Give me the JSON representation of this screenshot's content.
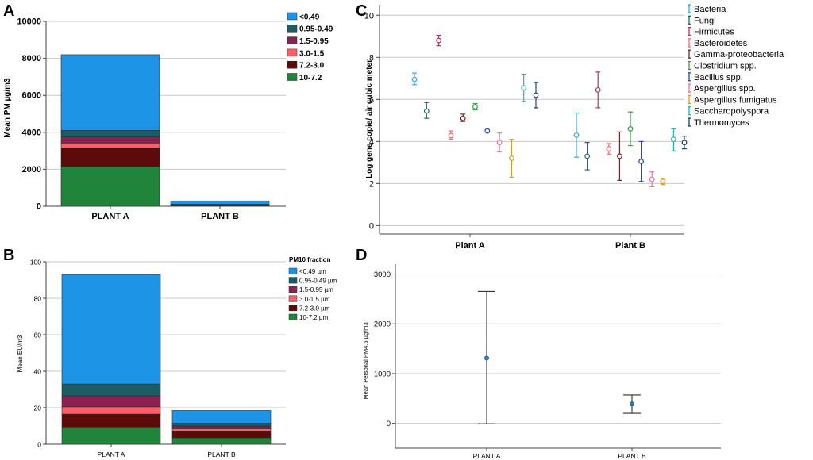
{
  "chart_data": [
    {
      "panel": "A",
      "type": "bar",
      "stacked": true,
      "categories": [
        "PLANT A",
        "PLANT B"
      ],
      "ylabel": "Mean PM µg/m3",
      "ylim": [
        0,
        10000
      ],
      "yticks": [
        0,
        2000,
        4000,
        6000,
        8000,
        10000
      ],
      "grid": true,
      "legend_title": "",
      "series": [
        {
          "name": "10-7.2",
          "color": "#21843b",
          "values": [
            2150,
            20
          ]
        },
        {
          "name": "7.2-3.0",
          "color": "#5c0a0a",
          "values": [
            1000,
            30
          ]
        },
        {
          "name": "3.0-1.5",
          "color": "#fd5e6a",
          "values": [
            270,
            15
          ]
        },
        {
          "name": "1.5-0.95",
          "color": "#8e1f51",
          "values": [
            330,
            15
          ]
        },
        {
          "name": "0.95-0.49",
          "color": "#1b5d64",
          "values": [
            350,
            30
          ]
        },
        {
          "name": "<0.49",
          "color": "#1e94e6",
          "values": [
            4100,
            180
          ]
        }
      ]
    },
    {
      "panel": "B",
      "type": "bar",
      "stacked": true,
      "categories": [
        "PLANT A",
        "PLANT B"
      ],
      "ylabel": "Mean EU/m3",
      "ylim": [
        0,
        100
      ],
      "yticks": [
        0,
        20,
        40,
        60,
        80,
        100
      ],
      "grid": true,
      "legend_title": "PM10 fraction",
      "series": [
        {
          "name": "10-7.2 µm",
          "color": "#21843b",
          "values": [
            9,
            3.5
          ]
        },
        {
          "name": "7.2-3.0 µm",
          "color": "#5c0a0a",
          "values": [
            7.5,
            3.5
          ]
        },
        {
          "name": "3.0-1.5 µm",
          "color": "#fd5e6a",
          "values": [
            4,
            1.5
          ]
        },
        {
          "name": "1.5-0.95 µm",
          "color": "#8e1f51",
          "values": [
            6,
            1.5
          ]
        },
        {
          "name": "0.95-0.49 µm",
          "color": "#1b5d64",
          "values": [
            6.5,
            1.5
          ]
        },
        {
          "name": "<0.49 µm",
          "color": "#1e94e6",
          "values": [
            60,
            7
          ]
        }
      ]
    },
    {
      "panel": "C",
      "type": "scatter",
      "error_bars": true,
      "categories": [
        "Plant A",
        "Plant B"
      ],
      "ylabel": "Log gene copie/ air cubic meter",
      "ylim": [
        -0.4,
        10.5
      ],
      "yticks": [
        0,
        2,
        4,
        6,
        8,
        10
      ],
      "grid": true,
      "series": [
        {
          "name": "Bacteria",
          "color": "#3aa5e8",
          "points": [
            {
              "x": "Plant A",
              "y": 6.95,
              "lo": 6.7,
              "hi": 7.25
            },
            {
              "x": "Plant B",
              "y": 4.3,
              "lo": 3.25,
              "hi": 5.35
            }
          ]
        },
        {
          "name": "Fungi",
          "color": "#1c6a66",
          "points": [
            {
              "x": "Plant A",
              "y": 5.45,
              "lo": 5.1,
              "hi": 5.85
            },
            {
              "x": "Plant B",
              "y": 3.3,
              "lo": 2.65,
              "hi": 3.95
            }
          ]
        },
        {
          "name": "Firmicutes",
          "color": "#b8325e",
          "points": [
            {
              "x": "Plant A",
              "y": 8.8,
              "lo": 8.55,
              "hi": 9.05
            },
            {
              "x": "Plant B",
              "y": 6.45,
              "lo": 5.6,
              "hi": 7.3
            }
          ]
        },
        {
          "name": "Bacteroidetes",
          "color": "#f06a72",
          "points": [
            {
              "x": "Plant A",
              "y": 4.28,
              "lo": 4.1,
              "hi": 4.5
            },
            {
              "x": "Plant B",
              "y": 3.65,
              "lo": 3.4,
              "hi": 3.9
            }
          ]
        },
        {
          "name": "Gamma-proteobacteria",
          "color": "#6e2a2a",
          "points": [
            {
              "x": "Plant A",
              "y": 5.1,
              "lo": 4.95,
              "hi": 5.3
            },
            {
              "x": "Plant B",
              "y": 3.3,
              "lo": 2.15,
              "hi": 4.45
            }
          ]
        },
        {
          "name": "Clostridium spp.",
          "color": "#3c9a4a",
          "points": [
            {
              "x": "Plant A",
              "y": 5.65,
              "lo": 5.5,
              "hi": 5.8
            },
            {
              "x": "Plant B",
              "y": 4.6,
              "lo": 3.8,
              "hi": 5.4
            }
          ]
        },
        {
          "name": "Bacillus spp.",
          "color": "#2348b8",
          "points": [
            {
              "x": "Plant A",
              "y": 4.5,
              "lo": 4.45,
              "hi": 4.55
            },
            {
              "x": "Plant B",
              "y": 3.05,
              "lo": 2.1,
              "hi": 4.0
            }
          ]
        },
        {
          "name": "Aspergillus spp.",
          "color": "#f3709a",
          "points": [
            {
              "x": "Plant A",
              "y": 3.95,
              "lo": 3.5,
              "hi": 4.4
            },
            {
              "x": "Plant B",
              "y": 2.2,
              "lo": 1.85,
              "hi": 2.55
            }
          ]
        },
        {
          "name": "Aspergillus fumigatus",
          "color": "#d4a02a",
          "points": [
            {
              "x": "Plant A",
              "y": 3.2,
              "lo": 2.3,
              "hi": 4.1
            },
            {
              "x": "Plant B",
              "y": 2.1,
              "lo": 1.95,
              "hi": 2.25
            }
          ]
        },
        {
          "name": "Saccharopolyspora",
          "color": "#2bb3b0",
          "points": [
            {
              "x": "Plant A",
              "y": 6.55,
              "lo": 5.9,
              "hi": 7.2
            },
            {
              "x": "Plant B",
              "y": 4.1,
              "lo": 3.55,
              "hi": 4.6
            }
          ]
        },
        {
          "name": "Thermomyces",
          "color": "#1f3e72",
          "points": [
            {
              "x": "Plant A",
              "y": 6.2,
              "lo": 5.6,
              "hi": 6.8
            },
            {
              "x": "Plant B",
              "y": 3.95,
              "lo": 3.65,
              "hi": 4.25
            }
          ]
        }
      ]
    },
    {
      "panel": "D",
      "type": "scatter",
      "error_bars": true,
      "categories": [
        "PLANT A",
        "PLANT B"
      ],
      "ylabel": "Mean Personal PM4.5 µg/m3",
      "ylim": [
        -500,
        3200
      ],
      "yticks": [
        0,
        1000,
        2000,
        3000
      ],
      "grid": true,
      "series": [
        {
          "name": "Mean Personal PM4.5",
          "color": "#2f7fc4",
          "points": [
            {
              "x": "PLANT A",
              "y": 1310,
              "lo": -10,
              "hi": 2650
            },
            {
              "x": "PLANT B",
              "y": 390,
              "lo": 200,
              "hi": 570
            }
          ]
        }
      ]
    }
  ],
  "panel_labels": {
    "a": "A",
    "b": "B",
    "c": "C",
    "d": "D"
  }
}
